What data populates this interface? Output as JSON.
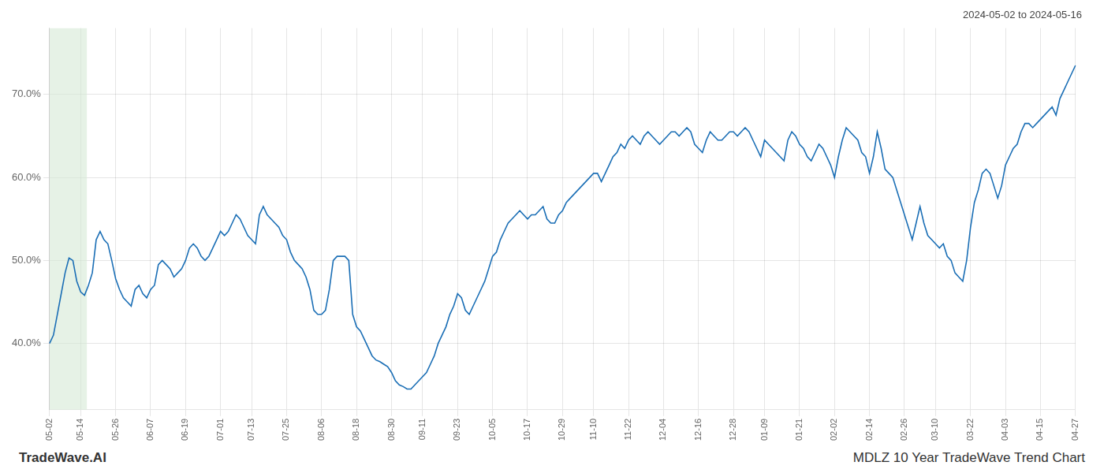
{
  "chart_data": {
    "type": "line",
    "title": "2024-05-02 to 2024-05-16",
    "annotations": [
      "TradeWave.AI",
      "MDLZ 10 Year TradeWave Trend Chart"
    ],
    "color": "#1a6eb5",
    "grid": true,
    "ylim": [
      32,
      78
    ],
    "yticks": [
      {
        "value": 40.0,
        "label": "40.0%"
      },
      {
        "value": 50.0,
        "label": "50.0%"
      },
      {
        "value": 60.0,
        "label": "60.0%"
      },
      {
        "value": 70.0,
        "label": "70.0%"
      }
    ],
    "shade": {
      "range": [
        0,
        9.6
      ],
      "color": "#d6ead6"
    },
    "categories": [
      "05-02",
      null,
      null,
      null,
      null,
      null,
      null,
      null,
      "05-14",
      null,
      null,
      null,
      null,
      null,
      null,
      null,
      null,
      "05-26",
      null,
      null,
      null,
      null,
      null,
      null,
      null,
      null,
      "06-07",
      null,
      null,
      null,
      null,
      null,
      null,
      null,
      null,
      "06-19",
      null,
      null,
      null,
      null,
      null,
      null,
      null,
      null,
      "07-01",
      null,
      null,
      null,
      null,
      null,
      null,
      null,
      "07-13",
      null,
      null,
      null,
      null,
      null,
      null,
      null,
      null,
      "07-25",
      null,
      null,
      null,
      null,
      null,
      null,
      null,
      null,
      "08-06",
      null,
      null,
      null,
      null,
      null,
      null,
      null,
      null,
      "08-18",
      null,
      null,
      null,
      null,
      null,
      null,
      null,
      null,
      "08-30",
      null,
      null,
      null,
      null,
      null,
      null,
      null,
      "09-11",
      null,
      null,
      null,
      null,
      null,
      null,
      null,
      null,
      "09-23",
      null,
      null,
      null,
      null,
      null,
      null,
      null,
      null,
      "10-05",
      null,
      null,
      null,
      null,
      null,
      null,
      null,
      null,
      "10-17",
      null,
      null,
      null,
      null,
      null,
      null,
      null,
      null,
      "10-29",
      null,
      null,
      null,
      null,
      null,
      null,
      null,
      "11-10",
      null,
      null,
      null,
      null,
      null,
      null,
      null,
      null,
      "11-22",
      null,
      null,
      null,
      null,
      null,
      null,
      null,
      null,
      "12-04",
      null,
      null,
      null,
      null,
      null,
      null,
      null,
      null,
      "12-16",
      null,
      null,
      null,
      null,
      null,
      null,
      null,
      null,
      "12-28",
      null,
      null,
      null,
      null,
      null,
      null,
      null,
      "01-09",
      null,
      null,
      null,
      null,
      null,
      null,
      null,
      null,
      "01-21",
      null,
      null,
      null,
      null,
      null,
      null,
      null,
      null,
      "02-02",
      null,
      null,
      null,
      null,
      null,
      null,
      null,
      null,
      "02-14",
      null,
      null,
      null,
      null,
      null,
      null,
      null,
      null,
      "02-26",
      null,
      null,
      null,
      null,
      null,
      null,
      null,
      "03-10",
      null,
      null,
      null,
      null,
      null,
      null,
      null,
      null,
      "03-22",
      null,
      null,
      null,
      null,
      null,
      null,
      null,
      null,
      "04-03",
      null,
      null,
      null,
      null,
      null,
      null,
      null,
      null,
      "04-15",
      null,
      null,
      null,
      null,
      null,
      null,
      null,
      null,
      "04-27"
    ],
    "values": [
      40.0,
      41.0,
      43.5,
      46.0,
      48.5,
      50.3,
      50.0,
      47.5,
      46.2,
      45.8,
      47.0,
      48.5,
      52.5,
      53.5,
      52.5,
      52.0,
      50.0,
      47.8,
      46.5,
      45.5,
      45.0,
      44.5,
      46.5,
      47.0,
      46.0,
      45.5,
      46.5,
      47.0,
      49.5,
      50.0,
      49.5,
      49.0,
      48.0,
      48.5,
      49.0,
      50.0,
      51.5,
      52.0,
      51.5,
      50.5,
      50.0,
      50.5,
      51.5,
      52.5,
      53.5,
      53.0,
      53.5,
      54.5,
      55.5,
      55.0,
      54.0,
      53.0,
      52.5,
      52.0,
      55.5,
      56.5,
      55.5,
      55.0,
      54.5,
      54.0,
      53.0,
      52.5,
      51.0,
      50.0,
      49.5,
      49.0,
      48.0,
      46.5,
      44.0,
      43.5,
      43.5,
      44.0,
      46.5,
      50.0,
      50.5,
      50.5,
      50.5,
      50.0,
      43.5,
      42.0,
      41.5,
      40.5,
      39.5,
      38.5,
      38.0,
      37.8,
      37.5,
      37.2,
      36.5,
      35.5,
      35.0,
      34.8,
      34.5,
      34.5,
      35.0,
      35.5,
      36.0,
      36.5,
      37.5,
      38.5,
      40.0,
      41.0,
      42.0,
      43.5,
      44.5,
      46.0,
      45.5,
      44.0,
      43.5,
      44.5,
      45.5,
      46.5,
      47.5,
      49.0,
      50.5,
      51.0,
      52.5,
      53.5,
      54.5,
      55.0,
      55.5,
      56.0,
      55.5,
      55.0,
      55.5,
      55.5,
      56.0,
      56.5,
      55.0,
      54.5,
      54.5,
      55.5,
      56.0,
      57.0,
      57.5,
      58.0,
      58.5,
      59.0,
      59.5,
      60.0,
      60.5,
      60.5,
      59.5,
      60.5,
      61.5,
      62.5,
      63.0,
      64.0,
      63.5,
      64.5,
      65.0,
      64.5,
      64.0,
      65.0,
      65.5,
      65.0,
      64.5,
      64.0,
      64.5,
      65.0,
      65.5,
      65.5,
      65.0,
      65.5,
      66.0,
      65.5,
      64.0,
      63.5,
      63.0,
      64.5,
      65.5,
      65.0,
      64.5,
      64.5,
      65.0,
      65.5,
      65.5,
      65.0,
      65.5,
      66.0,
      65.5,
      64.5,
      63.5,
      62.5,
      64.5,
      64.0,
      63.5,
      63.0,
      62.5,
      62.0,
      64.5,
      65.5,
      65.0,
      64.0,
      63.5,
      62.5,
      62.0,
      63.0,
      64.0,
      63.5,
      62.5,
      61.5,
      60.0,
      62.5,
      64.5,
      66.0,
      65.5,
      65.0,
      64.5,
      63.0,
      62.5,
      60.5,
      62.5,
      65.5,
      63.5,
      61.0,
      60.5,
      60.0,
      58.5,
      57.0,
      55.5,
      54.0,
      52.5,
      54.5,
      56.5,
      54.5,
      53.0,
      52.5,
      52.0,
      51.5,
      52.0,
      50.5,
      50.0,
      48.5,
      48.0,
      47.5,
      50.0,
      54.0,
      57.0,
      58.5,
      60.5,
      61.0,
      60.5,
      59.0,
      57.5,
      59.0,
      61.5,
      62.5,
      63.5,
      64.0,
      65.5,
      66.5,
      66.5,
      66.0,
      66.5,
      67.0,
      67.5,
      68.0,
      68.5,
      67.5,
      69.5,
      70.5,
      71.5,
      72.5,
      73.5
    ]
  }
}
